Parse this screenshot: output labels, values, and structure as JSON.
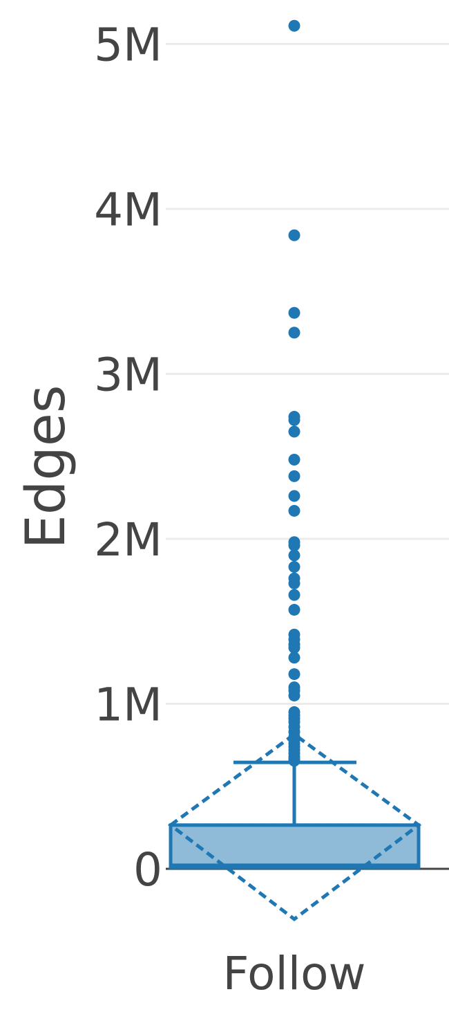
{
  "chart_data": {
    "type": "box",
    "ylabel": "Edges",
    "categories": [
      "Follow"
    ],
    "ylim": [
      -350000,
      5200000
    ],
    "yticks": [
      0,
      1000000,
      2000000,
      3000000,
      4000000,
      5000000
    ],
    "ytick_labels": [
      "0",
      "1M",
      "2M",
      "3M",
      "4M",
      "5M"
    ],
    "grid": true,
    "color": "#1f77b4",
    "box": {
      "q1": 8000,
      "median": 15000,
      "q3": 265000,
      "lower_fence": 0,
      "upper_fence": 645000,
      "mean": 265000,
      "mean_minus_sd": -305000,
      "mean_plus_sd": 815000
    },
    "outliers": [
      5110000,
      3840000,
      3370000,
      3250000,
      2740000,
      2720000,
      2650000,
      2480000,
      2380000,
      2260000,
      2170000,
      1980000,
      1960000,
      1900000,
      1830000,
      1760000,
      1730000,
      1660000,
      1570000,
      1420000,
      1390000,
      1360000,
      1340000,
      1280000,
      1180000,
      1100000,
      1080000,
      1050000,
      950000,
      930000,
      910000,
      890000,
      860000,
      830000,
      800000,
      780000,
      760000,
      740000,
      720000,
      700000,
      680000,
      665000,
      655000
    ]
  }
}
